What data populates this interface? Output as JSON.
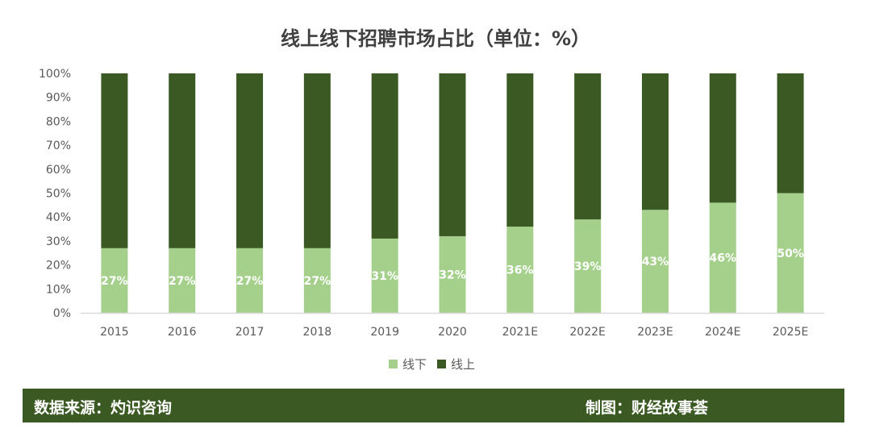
{
  "chart_data": {
    "type": "bar",
    "stacked": true,
    "title": "线上线下招聘市场占比（单位：%）",
    "categories": [
      "2015",
      "2016",
      "2017",
      "2018",
      "2019",
      "2020",
      "2021E",
      "2022E",
      "2023E",
      "2024E",
      "2025E"
    ],
    "series": [
      {
        "name": "线下",
        "color": "#a5d08c",
        "values": [
          27,
          27,
          27,
          27,
          31,
          32,
          36,
          39,
          43,
          46,
          50
        ],
        "labels": [
          "27%",
          "27%",
          "27%",
          "27%",
          "31%",
          "32%",
          "36%",
          "39%",
          "43%",
          "46%",
          "50%"
        ]
      },
      {
        "name": "线上",
        "color": "#3b5a23",
        "values": [
          73,
          73,
          73,
          73,
          69,
          68,
          64,
          61,
          57,
          54,
          50
        ]
      }
    ],
    "ylim": [
      0,
      100
    ],
    "yticks": [
      "0%",
      "10%",
      "20%",
      "30%",
      "40%",
      "50%",
      "60%",
      "70%",
      "80%",
      "90%",
      "100%"
    ],
    "grid": false,
    "legend": "bottom"
  },
  "footer": {
    "source": "数据来源：灼识咨询",
    "credit": "制图：财经故事荟"
  }
}
